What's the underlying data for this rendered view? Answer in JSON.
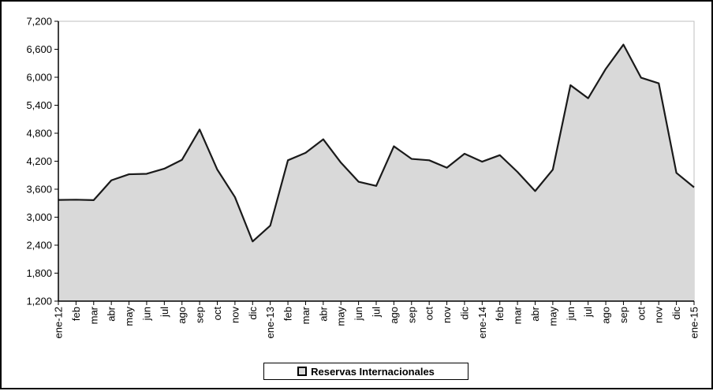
{
  "chart_data": {
    "type": "area",
    "x": [
      "ene-12",
      "feb",
      "mar",
      "abr",
      "may",
      "jun",
      "jul",
      "ago",
      "sep",
      "oct",
      "nov",
      "dic",
      "ene-13",
      "feb",
      "mar",
      "abr",
      "may",
      "jun",
      "jul",
      "ago",
      "sep",
      "oct",
      "nov",
      "dic",
      "ene-14",
      "feb",
      "mar",
      "abr",
      "may",
      "jun",
      "jul",
      "ago",
      "sep",
      "oct",
      "nov",
      "dic",
      "ene-15"
    ],
    "series": [
      {
        "name": "Reservas Internacionales",
        "values": [
          3370,
          3375,
          3365,
          3790,
          3920,
          3930,
          4040,
          4230,
          4880,
          4020,
          3430,
          2480,
          2820,
          4220,
          4380,
          4670,
          4170,
          3760,
          3670,
          4520,
          4250,
          4220,
          4060,
          4360,
          4190,
          4330,
          3970,
          3560,
          4020,
          5830,
          5550,
          6180,
          6700,
          5990,
          5870,
          3950,
          3640
        ]
      }
    ],
    "ylim": [
      1200,
      7200
    ],
    "yticks": [
      "1,200",
      "1,800",
      "2,400",
      "3,000",
      "3,600",
      "4,200",
      "4,800",
      "5,400",
      "6,000",
      "6,600",
      "7,200"
    ],
    "ytick_values": [
      1200,
      1800,
      2400,
      3000,
      3600,
      4200,
      4800,
      5400,
      6000,
      6600,
      7200
    ],
    "grid": false,
    "legend_position": "bottom",
    "colors": {
      "fill": "#d9d9d9",
      "line": "#1a1a1a",
      "frame": "#000000"
    }
  },
  "legend": {
    "label": "Reservas Internacionales"
  }
}
